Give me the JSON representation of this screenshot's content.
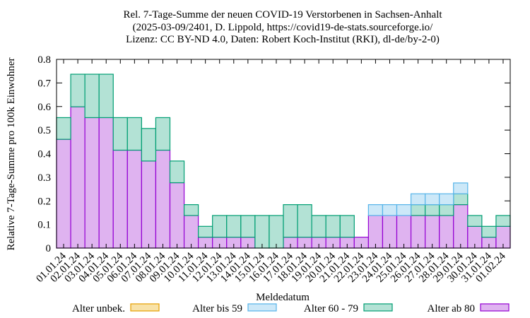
{
  "chart_data": {
    "type": "bar",
    "stacked": true,
    "title": "Rel. 7-Tage-Summe der neuen COVID-19 Verstorbenen in Sachsen-Anhalt",
    "subtitle": [
      "(2025-03-09/2401, D. Lippold, https://covid19-de-stats.sourceforge.io/",
      "Lizenz: CC BY-ND 4.0, Daten: Robert Koch-Institut (RKI), dl-de/by-2-0)"
    ],
    "x_label": "Meldedatum",
    "y_label": "Relative 7-Tage-Summe pro 100k Einwohner",
    "categories": [
      "01.01.24",
      "02.01.24",
      "03.01.24",
      "04.01.24",
      "05.01.24",
      "06.01.24",
      "07.01.24",
      "08.01.24",
      "09.01.24",
      "10.01.24",
      "11.01.24",
      "12.01.24",
      "13.01.24",
      "14.01.24",
      "15.01.24",
      "16.01.24",
      "17.01.24",
      "18.01.24",
      "19.01.24",
      "20.01.24",
      "21.01.24",
      "22.01.24",
      "23.01.24",
      "24.01.24",
      "25.01.24",
      "26.01.24",
      "27.01.24",
      "28.01.24",
      "29.01.24",
      "30.01.24",
      "31.01.24",
      "01.02.24"
    ],
    "series": [
      {
        "name": "Alter ab 80",
        "color": "#9400d3",
        "fill": "#dfb3f0",
        "values": [
          0.461,
          0.599,
          0.553,
          0.553,
          0.415,
          0.415,
          0.369,
          0.415,
          0.277,
          0.138,
          0.046,
          0.046,
          0.046,
          0.046,
          0,
          0,
          0.046,
          0.046,
          0.046,
          0.046,
          0.046,
          0.046,
          0.138,
          0.138,
          0.138,
          0.138,
          0.138,
          0.138,
          0.184,
          0.092,
          0.046,
          0.092
        ]
      },
      {
        "name": "Alter 60 - 79",
        "color": "#009e73",
        "fill": "#b3e2d5",
        "values": [
          0.092,
          0.138,
          0.184,
          0.184,
          0.138,
          0.138,
          0.138,
          0.138,
          0.092,
          0.046,
          0.046,
          0.092,
          0.092,
          0.092,
          0.138,
          0.138,
          0.138,
          0.138,
          0.092,
          0.092,
          0.092,
          0,
          0,
          0,
          0,
          0.046,
          0.046,
          0.046,
          0.046,
          0.046,
          0.046,
          0.046
        ]
      },
      {
        "name": "Alter bis 59",
        "color": "#56b4e9",
        "fill": "#cce8f8",
        "values": [
          0,
          0,
          0,
          0,
          0,
          0,
          0,
          0,
          0,
          0,
          0,
          0,
          0,
          0,
          0,
          0,
          0,
          0,
          0,
          0,
          0,
          0,
          0.046,
          0.046,
          0.046,
          0.046,
          0.046,
          0.046,
          0.046,
          0,
          0,
          0
        ]
      },
      {
        "name": "Alter unbek.",
        "color": "#e69f00",
        "fill": "#f8e2a8",
        "values": [
          0,
          0,
          0,
          0,
          0,
          0,
          0,
          0,
          0,
          0,
          0,
          0,
          0,
          0,
          0,
          0,
          0,
          0,
          0,
          0,
          0,
          0,
          0,
          0,
          0,
          0,
          0,
          0,
          0,
          0,
          0,
          0
        ]
      }
    ],
    "ylim": [
      0,
      0.8
    ],
    "yticks": [
      0,
      0.1,
      0.2,
      0.3,
      0.4,
      0.5,
      0.6,
      0.7,
      0.8
    ],
    "legend_order": [
      3,
      2,
      1,
      0
    ]
  }
}
